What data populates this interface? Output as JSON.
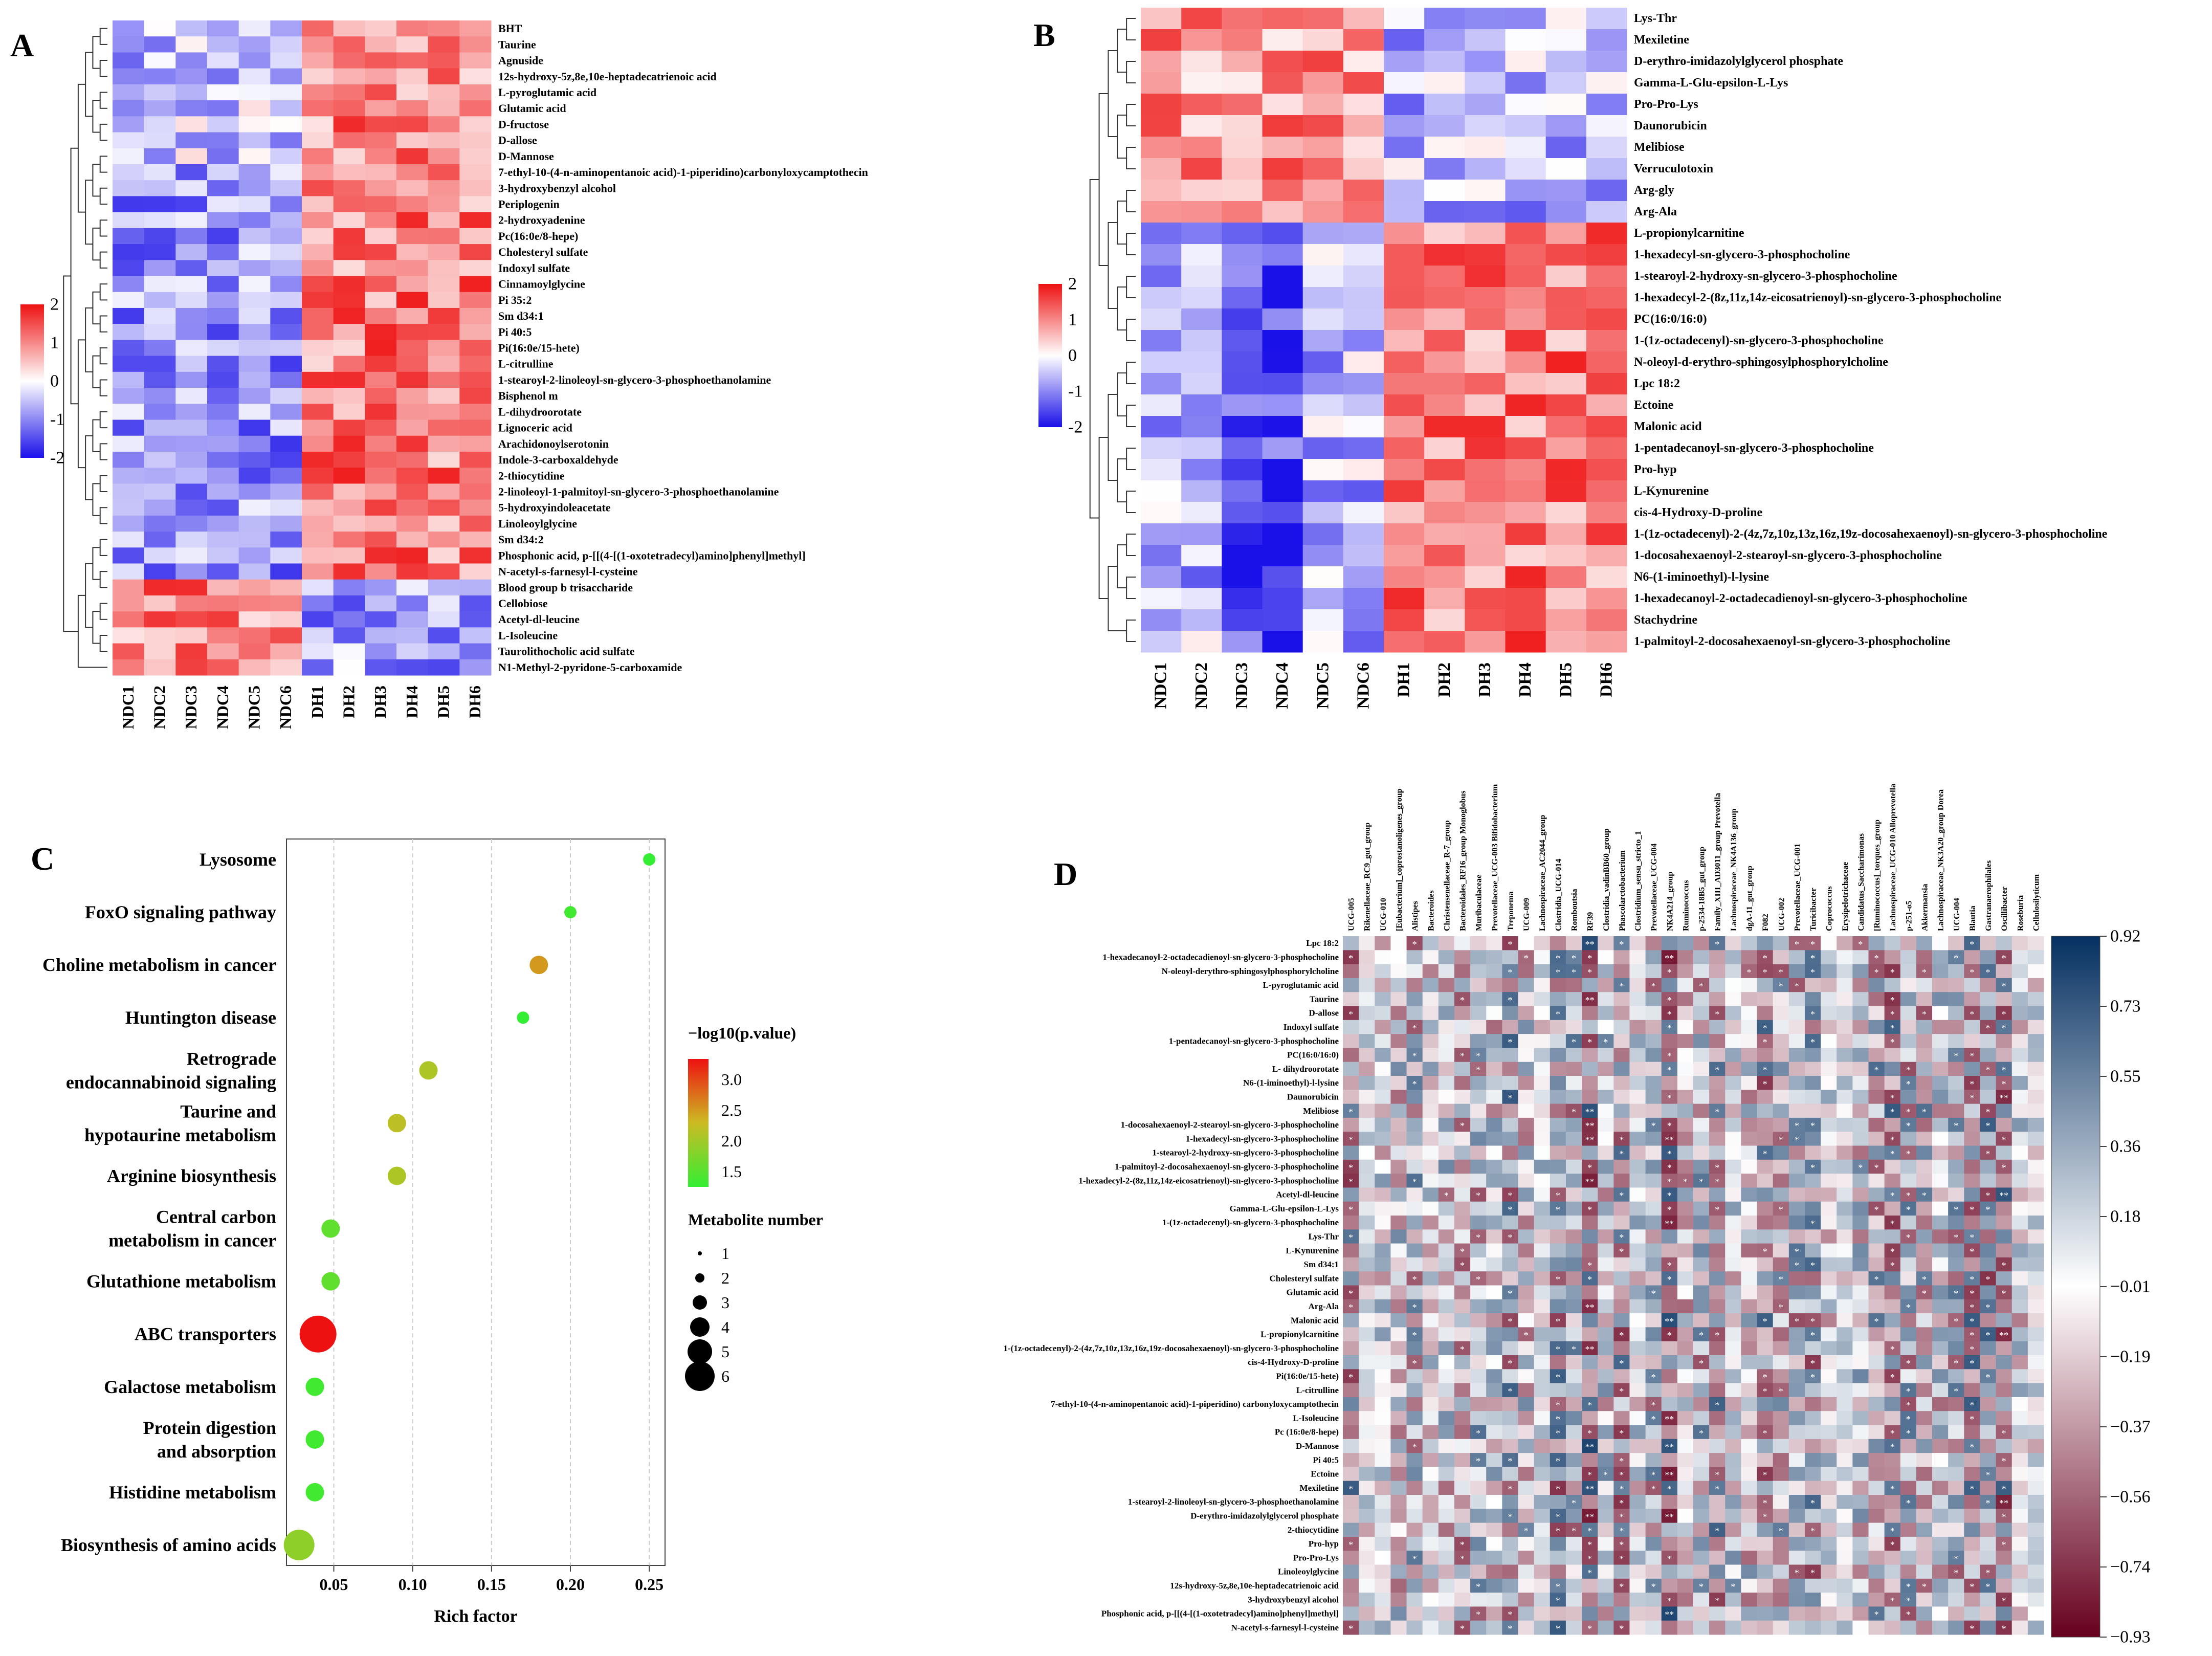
{
  "panels": {
    "A": "A",
    "B": "B",
    "C": "C",
    "D": "D"
  },
  "colors": {
    "neg": "#1a10e8",
    "mid": "#ffffff",
    "pos": "#ee1111",
    "corr_neg": "#67001f",
    "corr_pos": "#053061",
    "bubble_low": "#33ee33",
    "bubble_mid": "#ccbb22",
    "bubble_high": "#ee1111",
    "line": "#333333"
  },
  "chart_data": [
    {
      "panel": "A",
      "type": "heatmap",
      "columns": [
        "NDC1",
        "NDC2",
        "NDC3",
        "NDC4",
        "NDC5",
        "NDC6",
        "DH1",
        "DH2",
        "DH3",
        "DH4",
        "DH5",
        "DH6"
      ],
      "rows": [
        "BHT",
        "Taurine",
        "Agnuside",
        "12s-hydroxy-5z,8e,10e-heptadecatrienoic acid",
        "L-pyroglutamic acid",
        "Glutamic acid",
        "D-fructose",
        "D-allose",
        "D-Mannose",
        "7-ethyl-10-(4-n-aminopentanoic acid)-1-piperidino)carbonyloxycamptothecin",
        "3-hydroxybenzyl alcohol",
        "Periplogenin",
        "2-hydroxyadenine",
        "Pc(16:0e/8-hepe)",
        "Cholesteryl sulfate",
        "Indoxyl sulfate",
        "Cinnamoylglycine",
        "Pi 35:2",
        "Sm d34:1",
        "Pi 40:5",
        "Pi(16:0e/15-hete)",
        "L-citrulline",
        "1-stearoyl-2-linoleoyl-sn-glycero-3-phosphoethanolamine",
        "Bisphenol m",
        "L-dihydroorotate",
        "Lignoceric acid",
        "Arachidonoylserotonin",
        "Indole-3-carboxaldehyde",
        "2-thiocytidine",
        "2-linoleoyl-1-palmitoyl-sn-glycero-3-phosphoethanolamine",
        "5-hydroxyindoleacetate",
        "Linoleoylglycine",
        "Sm d34:2",
        "Phosphonic acid, p-[[(4-[(1-oxotetradecyl)amino]phenyl]methyl]",
        "N-acetyl-s-farnesyl-l-cysteine",
        "Blood group b trisaccharide",
        "Cellobiose",
        "Acetyl-dl-leucine",
        "L-Isoleucine",
        "Taurolithocholic acid sulfate",
        "N1-Methyl-2-pyridone-5-carboxamide"
      ],
      "legend_ticks": [
        "2",
        "1",
        "0",
        "-1",
        "-2"
      ],
      "range": [
        -2,
        2
      ]
    },
    {
      "panel": "B",
      "type": "heatmap",
      "columns": [
        "NDC1",
        "NDC2",
        "NDC3",
        "NDC4",
        "NDC5",
        "NDC6",
        "DH1",
        "DH2",
        "DH3",
        "DH4",
        "DH5",
        "DH6"
      ],
      "rows": [
        "Lys-Thr",
        "Mexiletine",
        "D-erythro-imidazolylglycerol phosphate",
        "Gamma-L-Glu-epsilon-L-Lys",
        "Pro-Pro-Lys",
        "Daunorubicin",
        "Melibiose",
        "Verruculotoxin",
        "Arg-gly",
        "Arg-Ala",
        "L-propionylcarnitine",
        "1-hexadecyl-sn-glycero-3-phosphocholine",
        "1-stearoyl-2-hydroxy-sn-glycero-3-phosphocholine",
        "1-hexadecyl-2-(8z,11z,14z-eicosatrienoyl)-sn-glycero-3-phosphocholine",
        "PC(16:0/16:0)",
        "1-(1z-octadecenyl)-sn-glycero-3-phosphocholine",
        "N-oleoyl-d-erythro-sphingosylphosphorylcholine",
        "Lpc 18:2",
        "Ectoine",
        "Malonic acid",
        "1-pentadecanoyl-sn-glycero-3-phosphocholine",
        "Pro-hyp",
        "L-Kynurenine",
        "cis-4-Hydroxy-D-proline",
        "1-(1z-octadecenyl)-2-(4z,7z,10z,13z,16z,19z-docosahexaenoyl)-sn-glycero-3-phosphocholine",
        "1-docosahexaenoyl-2-stearoyl-sn-glycero-3-phosphocholine",
        "N6-(1-iminoethyl)-l-lysine",
        "1-hexadecanoyl-2-octadecadienoyl-sn-glycero-3-phosphocholine",
        "Stachydrine",
        "1-palmitoyl-2-docosahexaenoyl-sn-glycero-3-phosphocholine"
      ],
      "legend_ticks": [
        "2",
        "1",
        "0",
        "-1",
        "-2"
      ],
      "range": [
        -2,
        2
      ]
    },
    {
      "panel": "C",
      "type": "scatter",
      "title": "",
      "xlabel": "Rich factor",
      "xlim": [
        0.02,
        0.26
      ],
      "xticks": [
        "0.05",
        "0.10",
        "0.15",
        "0.20",
        "0.25"
      ],
      "pathways": [
        "Lysosome",
        "FoxO signaling pathway",
        "Choline metabolism in cancer",
        "Huntington disease",
        "Retrograde endocannabinoid signaling",
        "Taurine and hypotaurine metabolism",
        "Arginine biosynthesis",
        "Central carbon metabolism in cancer",
        "Glutathione metabolism",
        "ABC transporters",
        "Galactose metabolism",
        "Protein digestion and absorption",
        "Histidine metabolism",
        "Biosynthesis of amino acids"
      ],
      "rich_factor": [
        0.25,
        0.2,
        0.18,
        0.17,
        0.11,
        0.09,
        0.09,
        0.048,
        0.048,
        0.04,
        0.038,
        0.038,
        0.038,
        0.028
      ],
      "neg_log10_p": [
        1.4,
        1.5,
        2.6,
        1.4,
        2.2,
        2.3,
        2.2,
        1.7,
        1.7,
        3.4,
        1.5,
        1.5,
        1.5,
        2.0
      ],
      "metabolite_number": [
        1,
        1,
        2,
        1,
        2,
        2,
        2,
        2,
        2,
        5,
        2,
        2,
        2,
        4
      ],
      "color_legend_title": "−log10(p.value)",
      "color_ticks": [
        "3.0",
        "2.5",
        "2.0",
        "1.5"
      ],
      "size_legend_title": "Metabolite number",
      "size_ticks": [
        "1",
        "2",
        "3",
        "4",
        "5",
        "6"
      ]
    },
    {
      "panel": "D",
      "type": "heatmap",
      "subtype": "correlation",
      "rows": [
        "Lpc 18:2",
        "1-hexadecanoyl-2-octadecadienoyl-sn-glycero-3-phosphocholine",
        "N-oleoyl-derythro-sphingosylphosphorylcholine",
        "L-pyroglutamic acid",
        "Taurine",
        "D-allose",
        "Indoxyl sulfate",
        "1-pentadecanoyl-sn-glycero-3-phosphocholine",
        "PC(16:0/16:0)",
        "L- dihydroorotate",
        "N6-(1-iminoethyl)-l-lysine",
        "Daunorubicin",
        "Melibiose",
        "1-docosahexaenoyl-2-stearoyl-sn-glycero-3-phosphocholine",
        "1-hexadecyl-sn-glycero-3-phosphocholine",
        "1-stearoyl-2-hydroxy-sn-glycero-3-phosphocholine",
        "1-palmitoyl-2-docosahexaenoyl-sn-glycero-3-phosphocholine",
        "1-hexadecyl-2-(8z,11z,14z-eicosatrienoyl)-sn-glycero-3-phosphocholine",
        "Acetyl-dl-leucine",
        "Gamma-L-Glu-epsilon-L-Lys",
        "1-(1z-octadecenyl)-sn-glycero-3-phosphocholine",
        "Lys-Thr",
        "L-Kynurenine",
        "Sm d34:1",
        "Cholesteryl sulfate",
        "Glutamic acid",
        "Arg-Ala",
        "Malonic acid",
        "L-propionylcarnitine",
        "1-(1z-octadecenyl)-2-(4z,7z,10z,13z,16z,19z-docosahexaenoyl)-sn-glycero-3-phosphocholine",
        "cis-4-Hydroxy-D-proline",
        "Pi(16:0e/15-hete)",
        "L-citrulline",
        "7-ethyl-10-(4-n-aminopentanoic acid)-1-piperidino) carbonyloxycamptothecin",
        "L-Isoleucine",
        "Pc (16:0e/8-hepe)",
        "D-Mannose",
        "Pi 40:5",
        "Ectoine",
        "Mexiletine",
        "1-stearoyl-2-linoleoyl-sn-glycero-3-phosphoethanolamine",
        "D-erythro-imidazolylglycerol phosphate",
        "2-thiocytidine",
        "Pro-hyp",
        "Pro-Pro-Lys",
        "Linoleoylglycine",
        "12s-hydroxy-5z,8e,10e-heptadecatrienoic acid",
        "3-hydroxybenzyl alcohol",
        "Phosphonic acid, p-[[(4-[(1-oxotetradecyl)amino]phenyl]methyl]",
        "N-acetyl-s-farnesyl-l-cysteine"
      ],
      "columns": [
        "UCG-005",
        "Rikenellaceae_RC9_gut_group",
        "UCG-010",
        "[Eubacterium]_coprostanoligenes_group",
        "Alistipes",
        "Bacteroides",
        "Christensenellaceae_R-7_group",
        "Bacteroidales_RF16_group Monoglobus",
        "Muribaculaceae",
        "Prevotellaceae_UCG-003 Bifidobacterium",
        "Treponema",
        "UCG-009",
        "Lachnospiraceae_AC2044_group",
        "Clostridia_UCG-014",
        "Romboutsia",
        "RF39",
        "Clostridia_vadinBB60_group",
        "Phascolarctobacterium",
        "Clostridium_sensu_stricto_1",
        "Prevotellaceae_UCG-004",
        "NK4A214_group",
        "Ruminococcus",
        "p-2534-18B5_gut_group",
        "Family_XIII_AD3011_group Prevotella",
        "Lachnospiraceae_NK4A136_group",
        "dgA-11_gut_group",
        "F082",
        "UCG-002",
        "Prevotellaceae_UCG-001",
        "Turicibacter",
        "Coprococcus",
        "Erysipelotrichaceae",
        "Candidatus_Saccharimonas",
        "[Ruminococcus]_torques_group",
        "Lachnospiraceae_UCG-010 Alloprevotella",
        "p-251-o5",
        "Akkermansia",
        "Lachnospiraceae_NK3A20_group Dorea",
        "UCG-004",
        "Blautia",
        "Gastranaerophilales",
        "Oscillibacter",
        "Roseburia",
        "Cellulosilyticum"
      ],
      "legend_ticks": [
        "0.92",
        "0.73",
        "0.55",
        "0.36",
        "0.18",
        "−0.01",
        "−0.19",
        "−0.37",
        "−0.56",
        "−0.74",
        "−0.93"
      ],
      "range": [
        -0.93,
        0.92
      ]
    }
  ]
}
